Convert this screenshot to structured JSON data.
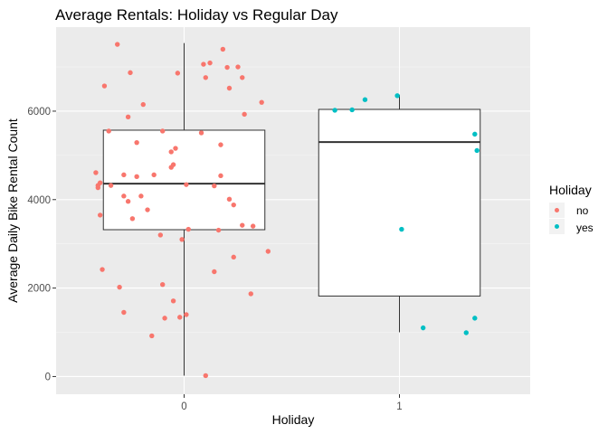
{
  "chart_data": {
    "type": "box",
    "title": "Average Rentals: Holiday vs Regular Day",
    "xlabel": "Holiday",
    "ylabel": "Average Daily Bike Rental Count",
    "categories": [
      "0",
      "1"
    ],
    "ylim": [
      -400,
      7900
    ],
    "y_ticks": [
      0,
      2000,
      4000,
      6000
    ],
    "y_tick_labels": [
      "0",
      "2000",
      "4000",
      "6000"
    ],
    "grid": true,
    "legend": {
      "title": "Holiday",
      "position": "right",
      "entries": [
        {
          "label": "no",
          "color": "#F8766D"
        },
        {
          "label": "yes",
          "color": "#00BFC4"
        }
      ]
    },
    "boxes": [
      {
        "category": "0",
        "whisker_low": 20,
        "q1": 3320,
        "median": 4360,
        "q3": 5570,
        "whisker_high": 7540
      },
      {
        "category": "1",
        "whisker_low": 1000,
        "q1": 1820,
        "median": 5300,
        "q3": 6040,
        "whisker_high": 6370
      }
    ],
    "series": [
      {
        "name": "no",
        "color": "#F8766D",
        "points": [
          [
            -0.31,
            7510
          ],
          [
            0.18,
            7400
          ],
          [
            -0.25,
            6870
          ],
          [
            -0.03,
            6860
          ],
          [
            0.12,
            7090
          ],
          [
            0.09,
            7060
          ],
          [
            0.2,
            6990
          ],
          [
            0.25,
            7000
          ],
          [
            0.27,
            6760
          ],
          [
            0.1,
            6760
          ],
          [
            -0.37,
            6570
          ],
          [
            0.21,
            6520
          ],
          [
            0.36,
            6200
          ],
          [
            -0.19,
            6150
          ],
          [
            0.28,
            5930
          ],
          [
            -0.26,
            5870
          ],
          [
            -0.35,
            5550
          ],
          [
            -0.1,
            5550
          ],
          [
            0.08,
            5510
          ],
          [
            0.17,
            5240
          ],
          [
            -0.22,
            5290
          ],
          [
            -0.04,
            5160
          ],
          [
            -0.06,
            5080
          ],
          [
            -0.05,
            4790
          ],
          [
            -0.06,
            4730
          ],
          [
            -0.41,
            4610
          ],
          [
            -0.28,
            4560
          ],
          [
            -0.14,
            4560
          ],
          [
            -0.22,
            4520
          ],
          [
            0.17,
            4540
          ],
          [
            -0.39,
            4380
          ],
          [
            -0.4,
            4320
          ],
          [
            -0.34,
            4320
          ],
          [
            -0.4,
            4270
          ],
          [
            0.01,
            4340
          ],
          [
            0.14,
            4310
          ],
          [
            -0.28,
            4080
          ],
          [
            -0.2,
            4080
          ],
          [
            0.21,
            4010
          ],
          [
            -0.26,
            3960
          ],
          [
            0.23,
            3880
          ],
          [
            -0.17,
            3770
          ],
          [
            -0.39,
            3650
          ],
          [
            -0.24,
            3570
          ],
          [
            0.02,
            3330
          ],
          [
            0.27,
            3420
          ],
          [
            0.32,
            3400
          ],
          [
            0.16,
            3310
          ],
          [
            -0.11,
            3200
          ],
          [
            -0.01,
            3100
          ],
          [
            0.39,
            2830
          ],
          [
            0.23,
            2700
          ],
          [
            -0.38,
            2420
          ],
          [
            0.14,
            2370
          ],
          [
            -0.1,
            2080
          ],
          [
            -0.3,
            2020
          ],
          [
            0.31,
            1870
          ],
          [
            -0.05,
            1710
          ],
          [
            -0.28,
            1450
          ],
          [
            0.01,
            1400
          ],
          [
            -0.02,
            1340
          ],
          [
            -0.09,
            1320
          ],
          [
            -0.15,
            920
          ],
          [
            0.1,
            20
          ]
        ]
      },
      {
        "name": "yes",
        "color": "#00BFC4",
        "points": [
          [
            0.99,
            6350
          ],
          [
            0.84,
            6260
          ],
          [
            0.78,
            6030
          ],
          [
            0.7,
            6020
          ],
          [
            1.35,
            5480
          ],
          [
            1.36,
            5110
          ],
          [
            1.01,
            3330
          ],
          [
            1.35,
            1320
          ],
          [
            1.11,
            1100
          ],
          [
            1.31,
            990
          ]
        ]
      }
    ]
  }
}
